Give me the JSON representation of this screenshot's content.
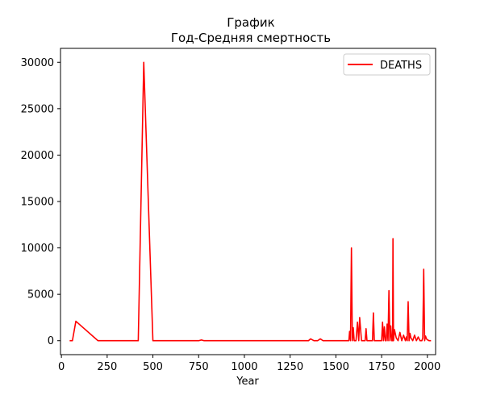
{
  "chart_data": {
    "type": "line",
    "title": "График",
    "subtitle": "Год-Средняя смертность",
    "xlabel": "Year",
    "ylabel": "",
    "xlim": [
      -5,
      2045
    ],
    "ylim": [
      -1500,
      31500
    ],
    "xticks": [
      0,
      250,
      500,
      750,
      1000,
      1250,
      1500,
      1750,
      2000
    ],
    "yticks": [
      0,
      5000,
      10000,
      15000,
      20000,
      25000,
      30000
    ],
    "grid": false,
    "legend_position": "top-right",
    "series": [
      {
        "name": "DEATHS",
        "color": "#ff0000",
        "x": [
          45,
          60,
          79,
          200,
          420,
          450,
          500,
          700,
          750,
          765,
          780,
          1000,
          1200,
          1350,
          1362,
          1380,
          1400,
          1415,
          1430,
          1500,
          1550,
          1571,
          1575,
          1580,
          1585,
          1590,
          1595,
          1600,
          1610,
          1618,
          1625,
          1630,
          1640,
          1650,
          1660,
          1665,
          1670,
          1680,
          1690,
          1700,
          1705,
          1710,
          1720,
          1730,
          1740,
          1750,
          1755,
          1760,
          1765,
          1770,
          1775,
          1780,
          1785,
          1790,
          1795,
          1800,
          1805,
          1810,
          1812,
          1815,
          1820,
          1830,
          1840,
          1850,
          1860,
          1870,
          1880,
          1885,
          1890,
          1895,
          1900,
          1905,
          1910,
          1920,
          1930,
          1940,
          1950,
          1960,
          1970,
          1975,
          1980,
          1985,
          1990,
          1995,
          2000,
          2010,
          2020
        ],
        "values": [
          0,
          0,
          2100,
          0,
          0,
          30000,
          0,
          0,
          0,
          80,
          0,
          0,
          0,
          0,
          200,
          0,
          0,
          200,
          0,
          0,
          0,
          0,
          1000,
          0,
          10000,
          0,
          1400,
          0,
          0,
          2000,
          0,
          2500,
          0,
          0,
          0,
          1300,
          0,
          0,
          0,
          0,
          3000,
          0,
          0,
          0,
          0,
          0,
          2000,
          0,
          1500,
          0,
          0,
          1800,
          0,
          5400,
          0,
          1600,
          0,
          0,
          11000,
          0,
          1200,
          300,
          0,
          900,
          0,
          600,
          0,
          400,
          0,
          4200,
          0,
          800,
          300,
          0,
          600,
          0,
          400,
          0,
          0,
          300,
          7700,
          0,
          500,
          200,
          100,
          0,
          0
        ]
      }
    ]
  }
}
